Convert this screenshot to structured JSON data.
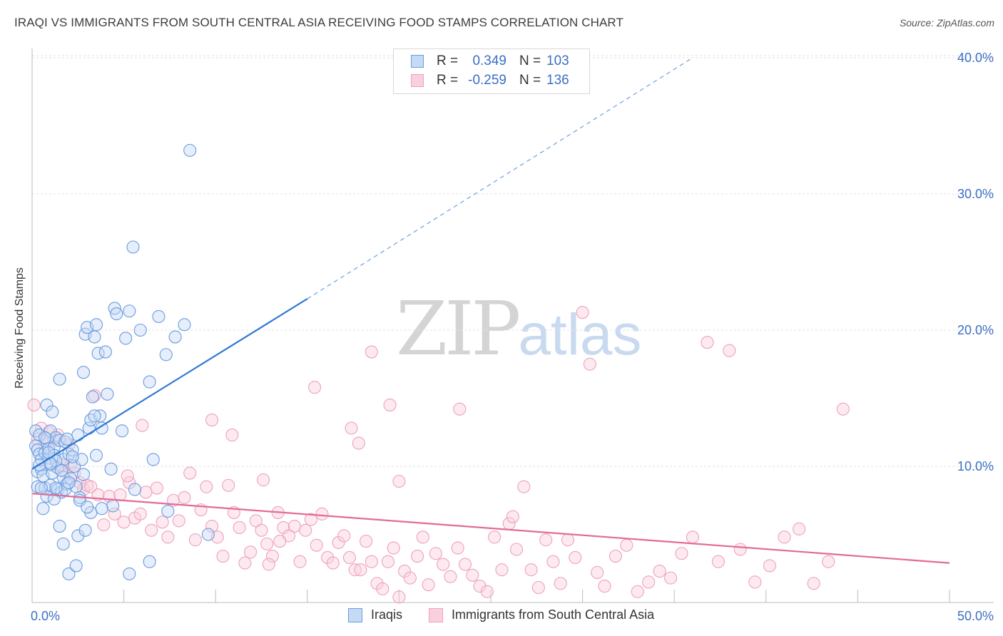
{
  "title": "IRAQI VS IMMIGRANTS FROM SOUTH CENTRAL ASIA RECEIVING FOOD STAMPS CORRELATION CHART",
  "source": "Source: ZipAtlas.com",
  "watermark": {
    "zip": "ZIP",
    "atlas": "atlas"
  },
  "colors": {
    "iraqis": "#6a9be0",
    "iraqis_line": "#2f78d4",
    "immigrants": "#f0a0bb",
    "immigrants_line": "#e36b96",
    "tick_blue": "#3b6fc4"
  },
  "legend_top": [
    {
      "r_key": "R =",
      "r_val": "0.349",
      "n_key": "N =",
      "n_val": "103"
    },
    {
      "r_key": "R =",
      "r_val": "-0.259",
      "n_key": "N =",
      "n_val": "136"
    }
  ],
  "legend_bottom": [
    "Iraqis",
    "Immigrants from South Central Asia"
  ],
  "chart_data": {
    "type": "scatter",
    "xlabel": "",
    "ylabel": "Receiving Food Stamps",
    "xlim": [
      0,
      50
    ],
    "ylim": [
      0,
      42
    ],
    "x_tick_labels": [
      "0.0%",
      "50.0%"
    ],
    "y_ticks": [
      10,
      20,
      30,
      40
    ],
    "y_tick_labels": [
      "10.0%",
      "20.0%",
      "30.0%",
      "40.0%"
    ],
    "grid": true,
    "series": [
      {
        "name": "Iraqis",
        "r": 0.349,
        "n": 103,
        "trend": {
          "x0": 0,
          "y0": 9.8,
          "x1": 15,
          "y1": 22.3,
          "dash_x1": 36,
          "dash_y1": 40.0
        },
        "points": [
          [
            0.2,
            11.5
          ],
          [
            0.2,
            12.6
          ],
          [
            0.3,
            11.2
          ],
          [
            0.3,
            8.5
          ],
          [
            0.3,
            9.6
          ],
          [
            0.4,
            10.9
          ],
          [
            0.4,
            12.3
          ],
          [
            0.5,
            9.8
          ],
          [
            0.5,
            10.5
          ],
          [
            0.6,
            9.3
          ],
          [
            0.7,
            11.0
          ],
          [
            0.7,
            8.4
          ],
          [
            0.8,
            12.0
          ],
          [
            0.8,
            7.8
          ],
          [
            0.8,
            14.5
          ],
          [
            0.9,
            10.6
          ],
          [
            0.9,
            11.3
          ],
          [
            1.0,
            12.6
          ],
          [
            1.0,
            10.1
          ],
          [
            1.0,
            8.6
          ],
          [
            1.1,
            14.0
          ],
          [
            1.1,
            9.5
          ],
          [
            1.2,
            11.4
          ],
          [
            1.2,
            10.8
          ],
          [
            1.3,
            12.1
          ],
          [
            1.4,
            9.9
          ],
          [
            1.4,
            8.3
          ],
          [
            1.5,
            11.9
          ],
          [
            1.5,
            16.4
          ],
          [
            1.6,
            8.1
          ],
          [
            1.7,
            10.5
          ],
          [
            1.7,
            9.2
          ],
          [
            1.8,
            11.8
          ],
          [
            1.9,
            8.7
          ],
          [
            2.0,
            10.9
          ],
          [
            2.1,
            9.1
          ],
          [
            2.2,
            11.2
          ],
          [
            2.3,
            10.0
          ],
          [
            2.4,
            8.5
          ],
          [
            2.5,
            12.3
          ],
          [
            2.6,
            7.7
          ],
          [
            2.7,
            10.5
          ],
          [
            2.8,
            9.4
          ],
          [
            2.8,
            16.9
          ],
          [
            2.9,
            19.7
          ],
          [
            3.0,
            20.2
          ],
          [
            3.1,
            12.8
          ],
          [
            3.2,
            13.4
          ],
          [
            3.3,
            15.1
          ],
          [
            3.4,
            19.5
          ],
          [
            3.5,
            10.8
          ],
          [
            3.5,
            20.4
          ],
          [
            3.6,
            18.3
          ],
          [
            3.7,
            13.7
          ],
          [
            3.8,
            12.8
          ],
          [
            4.0,
            18.4
          ],
          [
            4.1,
            15.3
          ],
          [
            4.3,
            9.8
          ],
          [
            4.4,
            7.1
          ],
          [
            4.5,
            21.6
          ],
          [
            4.6,
            21.2
          ],
          [
            4.9,
            12.6
          ],
          [
            5.1,
            19.4
          ],
          [
            5.3,
            21.4
          ],
          [
            5.5,
            26.1
          ],
          [
            5.6,
            8.3
          ],
          [
            5.9,
            20.0
          ],
          [
            6.4,
            16.2
          ],
          [
            6.6,
            10.5
          ],
          [
            6.9,
            21.0
          ],
          [
            7.3,
            18.2
          ],
          [
            7.4,
            6.7
          ],
          [
            7.8,
            19.5
          ],
          [
            8.3,
            20.4
          ],
          [
            8.6,
            33.2
          ],
          [
            9.6,
            5.0
          ],
          [
            1.5,
            5.6
          ],
          [
            1.7,
            4.3
          ],
          [
            2.0,
            2.1
          ],
          [
            2.4,
            2.7
          ],
          [
            2.5,
            4.9
          ],
          [
            2.9,
            5.3
          ],
          [
            3.2,
            6.6
          ],
          [
            3.4,
            13.7
          ],
          [
            5.3,
            2.1
          ],
          [
            6.4,
            3.0
          ],
          [
            0.6,
            6.9
          ],
          [
            1.2,
            7.6
          ],
          [
            1.8,
            8.3
          ],
          [
            2.6,
            7.5
          ],
          [
            3.0,
            7.0
          ],
          [
            3.8,
            6.9
          ],
          [
            0.4,
            10.1
          ],
          [
            0.7,
            12.1
          ],
          [
            0.9,
            11.0
          ],
          [
            1.3,
            10.4
          ],
          [
            1.6,
            9.7
          ],
          [
            1.9,
            12.0
          ],
          [
            2.2,
            10.7
          ],
          [
            0.5,
            8.4
          ],
          [
            1.0,
            10.2
          ],
          [
            1.3,
            8.4
          ],
          [
            2.0,
            8.8
          ]
        ]
      },
      {
        "name": "Immigrants from South Central Asia",
        "r": -0.259,
        "n": 136,
        "trend": {
          "x0": 0,
          "y0": 8.0,
          "x1": 50,
          "y1": 2.9
        },
        "points": [
          [
            0.1,
            14.5
          ],
          [
            0.3,
            12.0
          ],
          [
            0.5,
            12.8
          ],
          [
            0.7,
            11.6
          ],
          [
            0.9,
            12.5
          ],
          [
            1.2,
            11.9
          ],
          [
            1.4,
            12.3
          ],
          [
            1.6,
            10.1
          ],
          [
            1.8,
            9.6
          ],
          [
            2.0,
            11.6
          ],
          [
            2.1,
            10.1
          ],
          [
            2.3,
            9.5
          ],
          [
            2.6,
            8.8
          ],
          [
            2.8,
            8.3
          ],
          [
            3.0,
            8.6
          ],
          [
            3.2,
            8.5
          ],
          [
            3.4,
            15.2
          ],
          [
            3.6,
            7.9
          ],
          [
            3.9,
            5.7
          ],
          [
            4.2,
            7.8
          ],
          [
            4.5,
            6.5
          ],
          [
            4.8,
            7.9
          ],
          [
            5.0,
            5.9
          ],
          [
            5.3,
            8.8
          ],
          [
            5.6,
            6.2
          ],
          [
            5.9,
            6.5
          ],
          [
            6.2,
            8.1
          ],
          [
            6.5,
            5.3
          ],
          [
            6.8,
            8.4
          ],
          [
            7.1,
            5.9
          ],
          [
            7.4,
            4.8
          ],
          [
            7.7,
            7.5
          ],
          [
            8.0,
            6.0
          ],
          [
            8.3,
            7.7
          ],
          [
            8.6,
            9.5
          ],
          [
            8.9,
            4.6
          ],
          [
            9.2,
            6.8
          ],
          [
            9.5,
            8.5
          ],
          [
            9.8,
            5.6
          ],
          [
            10.1,
            4.8
          ],
          [
            10.4,
            3.4
          ],
          [
            10.7,
            8.6
          ],
          [
            11.0,
            6.6
          ],
          [
            11.3,
            5.5
          ],
          [
            11.6,
            2.9
          ],
          [
            11.9,
            3.7
          ],
          [
            12.2,
            6.0
          ],
          [
            12.5,
            5.3
          ],
          [
            12.8,
            4.3
          ],
          [
            13.1,
            3.4
          ],
          [
            13.4,
            6.6
          ],
          [
            13.7,
            5.5
          ],
          [
            14.0,
            4.9
          ],
          [
            14.3,
            5.6
          ],
          [
            14.6,
            3.0
          ],
          [
            14.9,
            5.3
          ],
          [
            15.2,
            6.1
          ],
          [
            15.5,
            4.2
          ],
          [
            15.8,
            6.5
          ],
          [
            16.1,
            3.3
          ],
          [
            16.4,
            2.9
          ],
          [
            16.7,
            4.4
          ],
          [
            17.0,
            4.9
          ],
          [
            17.3,
            3.3
          ],
          [
            17.6,
            2.4
          ],
          [
            17.9,
            2.4
          ],
          [
            18.2,
            4.5
          ],
          [
            18.5,
            3.0
          ],
          [
            18.8,
            1.4
          ],
          [
            19.1,
            1.0
          ],
          [
            19.4,
            3.0
          ],
          [
            19.7,
            4.0
          ],
          [
            20.0,
            0.4
          ],
          [
            20.3,
            2.3
          ],
          [
            20.6,
            1.8
          ],
          [
            21.0,
            3.4
          ],
          [
            21.3,
            4.8
          ],
          [
            21.6,
            1.3
          ],
          [
            22.0,
            3.6
          ],
          [
            22.4,
            2.8
          ],
          [
            22.8,
            1.9
          ],
          [
            23.2,
            4.0
          ],
          [
            23.6,
            2.8
          ],
          [
            24.0,
            2.0
          ],
          [
            24.4,
            1.2
          ],
          [
            24.8,
            0.8
          ],
          [
            25.2,
            4.8
          ],
          [
            25.6,
            2.4
          ],
          [
            26.0,
            5.8
          ],
          [
            26.4,
            3.9
          ],
          [
            26.8,
            8.5
          ],
          [
            27.2,
            2.4
          ],
          [
            27.6,
            1.1
          ],
          [
            28.0,
            4.6
          ],
          [
            28.4,
            3.0
          ],
          [
            28.8,
            1.4
          ],
          [
            29.2,
            4.6
          ],
          [
            29.6,
            3.3
          ],
          [
            30.0,
            21.3
          ],
          [
            30.4,
            17.5
          ],
          [
            30.8,
            2.2
          ],
          [
            31.2,
            1.2
          ],
          [
            31.8,
            3.4
          ],
          [
            32.4,
            4.2
          ],
          [
            33.0,
            0.8
          ],
          [
            33.6,
            1.5
          ],
          [
            34.2,
            2.3
          ],
          [
            34.8,
            1.8
          ],
          [
            35.4,
            3.6
          ],
          [
            36.0,
            4.8
          ],
          [
            36.8,
            19.1
          ],
          [
            37.4,
            3.0
          ],
          [
            38.0,
            18.5
          ],
          [
            38.6,
            3.9
          ],
          [
            39.4,
            1.5
          ],
          [
            40.2,
            2.7
          ],
          [
            41.0,
            4.8
          ],
          [
            41.8,
            5.4
          ],
          [
            42.6,
            1.4
          ],
          [
            43.4,
            3.0
          ],
          [
            44.2,
            14.2
          ],
          [
            18.5,
            18.4
          ],
          [
            15.4,
            15.8
          ],
          [
            19.5,
            14.5
          ],
          [
            23.3,
            14.2
          ],
          [
            10.9,
            12.3
          ],
          [
            17.4,
            12.8
          ],
          [
            17.8,
            11.7
          ],
          [
            9.8,
            13.4
          ],
          [
            12.6,
            9.0
          ],
          [
            6.0,
            13.0
          ],
          [
            5.2,
            9.3
          ],
          [
            20.0,
            8.9
          ],
          [
            13.5,
            4.5
          ],
          [
            12.9,
            2.8
          ],
          [
            26.2,
            6.3
          ]
        ]
      }
    ]
  }
}
